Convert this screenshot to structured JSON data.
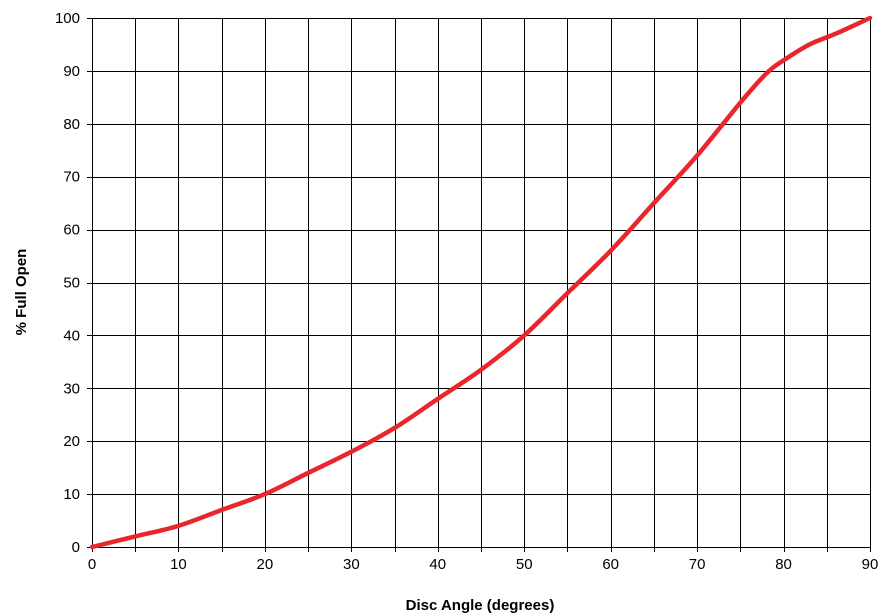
{
  "chart_data": {
    "type": "line",
    "title": "",
    "xlabel": "Disc Angle  (degrees)",
    "ylabel": "%  Full Open",
    "xlim": [
      0,
      90
    ],
    "ylim": [
      0,
      100
    ],
    "x_ticks": [
      0,
      10,
      20,
      30,
      40,
      50,
      60,
      70,
      80,
      90
    ],
    "y_ticks": [
      0,
      10,
      20,
      30,
      40,
      50,
      60,
      70,
      80,
      90,
      100
    ],
    "x_grid_step": 5,
    "y_grid_step": 10,
    "grid": true,
    "legend": "none",
    "series": [
      {
        "color": "#e8262b",
        "x": [
          0,
          5,
          10,
          15,
          20,
          25,
          30,
          35,
          40,
          45,
          50,
          55,
          60,
          65,
          70,
          75,
          78,
          80,
          83,
          86,
          90
        ],
        "y": [
          0,
          2,
          4,
          7,
          10,
          14,
          18,
          22.5,
          28,
          33.5,
          40,
          48,
          56,
          65,
          74,
          84,
          89.5,
          92,
          95,
          97,
          100
        ]
      }
    ]
  }
}
